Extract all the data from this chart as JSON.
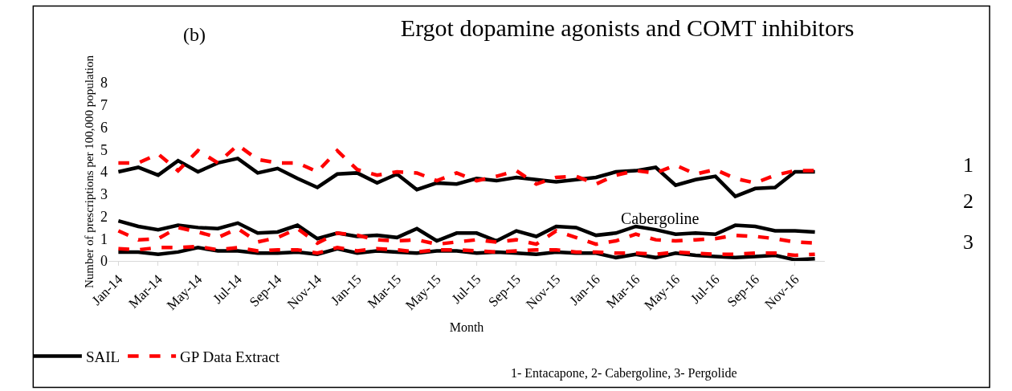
{
  "chart_data": {
    "type": "line",
    "title": "Ergot dopamine agonists and COMT inhibitors",
    "xlabel": "Month",
    "ylabel": "Number of prescriptions per 100,000 population",
    "categories": [
      "Jan-14",
      null,
      "Mar-14",
      null,
      "May-14",
      null,
      "Jul-14",
      null,
      "Sep-14",
      null,
      "Nov-14",
      null,
      "Jan-15",
      null,
      "Mar-15",
      null,
      "May-15",
      null,
      "Jul-15",
      null,
      "Sep-15",
      null,
      "Nov-15",
      null,
      "Jan-16",
      null,
      "Mar-16",
      null,
      "May-16",
      null,
      "Jul-16",
      null,
      "Sep-16",
      null,
      "Nov-16",
      null
    ],
    "ylim": [
      0,
      8
    ],
    "yticks": [
      0,
      1,
      2,
      3,
      4,
      5,
      6,
      7,
      8
    ],
    "grid": false,
    "legend": "bottom left",
    "series": [
      {
        "name": "SAIL",
        "color": "#000000",
        "line_style": "solid",
        "values": [
          4.0,
          4.2,
          3.85,
          4.5,
          4.0,
          4.4,
          4.6,
          3.95,
          4.15,
          3.7,
          3.3,
          3.9,
          3.95,
          3.5,
          3.9,
          3.2,
          3.5,
          3.45,
          3.7,
          3.6,
          3.75,
          3.65,
          3.55,
          3.65,
          3.75,
          4.0,
          4.05,
          4.2,
          3.4,
          3.65,
          3.8,
          2.9,
          3.25,
          3.3,
          4.0,
          4.0
        ]
      },
      {
        "name": "GP Data Extract",
        "color": "#ff0000",
        "line_style": "dashed",
        "values": [
          4.4,
          4.4,
          4.8,
          4.05,
          4.95,
          4.4,
          5.2,
          4.55,
          4.4,
          4.4,
          4.0,
          4.95,
          4.1,
          3.85,
          4.0,
          3.95,
          3.6,
          3.95,
          3.6,
          3.8,
          4.05,
          3.45,
          3.75,
          3.8,
          3.45,
          3.85,
          4.05,
          3.95,
          4.3,
          3.9,
          4.1,
          3.7,
          3.5,
          3.85,
          4.05,
          4.05
        ]
      },
      {
        "color": "#000000",
        "line_style": "solid",
        "values": [
          1.8,
          1.55,
          1.4,
          1.6,
          1.5,
          1.45,
          1.7,
          1.25,
          1.3,
          1.6,
          1.0,
          1.25,
          1.1,
          1.15,
          1.05,
          1.45,
          0.9,
          1.25,
          1.25,
          0.9,
          1.35,
          1.1,
          1.55,
          1.5,
          1.15,
          1.25,
          1.55,
          1.4,
          1.2,
          1.25,
          1.2,
          1.6,
          1.55,
          1.35,
          1.35,
          1.3
        ]
      },
      {
        "color": "#ff0000",
        "line_style": "dashed",
        "values": [
          1.35,
          0.95,
          1.0,
          1.5,
          1.3,
          1.05,
          1.45,
          0.85,
          1.05,
          1.45,
          0.8,
          1.25,
          1.15,
          0.95,
          0.9,
          0.95,
          0.75,
          0.85,
          0.95,
          0.85,
          0.95,
          0.75,
          1.35,
          1.05,
          0.75,
          0.9,
          1.2,
          0.95,
          0.9,
          0.95,
          1.0,
          1.15,
          1.1,
          1.0,
          0.85,
          0.8
        ]
      },
      {
        "color": "#000000",
        "line_style": "solid",
        "values": [
          0.4,
          0.4,
          0.3,
          0.4,
          0.6,
          0.45,
          0.45,
          0.35,
          0.35,
          0.4,
          0.3,
          0.55,
          0.35,
          0.45,
          0.4,
          0.35,
          0.45,
          0.45,
          0.35,
          0.4,
          0.35,
          0.3,
          0.4,
          0.35,
          0.35,
          0.15,
          0.3,
          0.15,
          0.35,
          0.25,
          0.2,
          0.15,
          0.2,
          0.25,
          0.05,
          0.1
        ]
      },
      {
        "color": "#ff0000",
        "line_style": "dashed",
        "values": [
          0.55,
          0.5,
          0.6,
          0.6,
          0.65,
          0.5,
          0.6,
          0.45,
          0.5,
          0.5,
          0.35,
          0.6,
          0.45,
          0.55,
          0.5,
          0.4,
          0.5,
          0.5,
          0.45,
          0.4,
          0.45,
          0.5,
          0.5,
          0.4,
          0.4,
          0.35,
          0.35,
          0.3,
          0.4,
          0.35,
          0.3,
          0.3,
          0.35,
          0.35,
          0.25,
          0.3
        ]
      }
    ],
    "annotations": [
      "(b)",
      "1",
      "2",
      "3",
      "1- Entacapone, 2- Cabergoline, 3- Pergolide",
      "Cabergoline"
    ]
  }
}
